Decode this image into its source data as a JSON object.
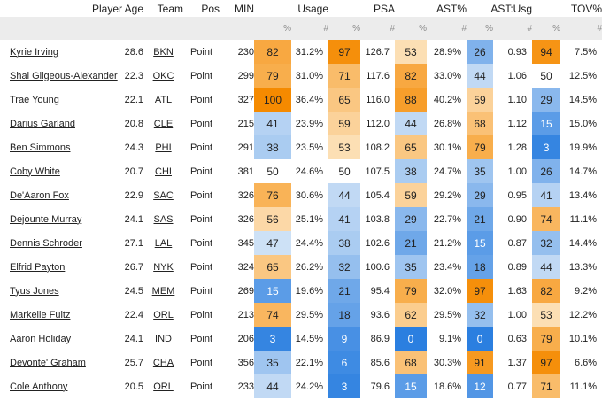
{
  "headers": {
    "player": "Player",
    "age": "Age",
    "team": "Team",
    "pos": "Pos",
    "min": "MIN",
    "usage": "Usage",
    "psa": "PSA",
    "ast": "AST%",
    "astusg": "AST:Usg",
    "tov": "TOV%"
  },
  "sub": {
    "pct": "%",
    "val": "#"
  },
  "colors": {
    "low_strong": "#2b7fe0",
    "low_light": "#dbe9f8",
    "mid": "#ffffff",
    "high_light": "#fde6c4",
    "high_strong": "#f58a00"
  },
  "rows": [
    {
      "player": "Kyrie Irving",
      "age": "28.6",
      "team": "BKN",
      "pos": "Point",
      "min": "230",
      "usage_pct": 82,
      "usage": "31.2%",
      "psa_pct": 97,
      "psa": "126.7",
      "ast_pct": 53,
      "ast": "28.9%",
      "au_pct": 26,
      "au": "0.93",
      "tov_pct": 94,
      "tov": "7.5%"
    },
    {
      "player": "Shai Gilgeous-Alexander",
      "age": "22.3",
      "team": "OKC",
      "pos": "Point",
      "min": "299",
      "usage_pct": 79,
      "usage": "31.0%",
      "psa_pct": 71,
      "psa": "117.6",
      "ast_pct": 82,
      "ast": "33.0%",
      "au_pct": 44,
      "au": "1.06",
      "tov_pct": 50,
      "tov": "12.5%"
    },
    {
      "player": "Trae Young",
      "age": "22.1",
      "team": "ATL",
      "pos": "Point",
      "min": "327",
      "usage_pct": 100,
      "usage": "36.4%",
      "psa_pct": 65,
      "psa": "116.0",
      "ast_pct": 88,
      "ast": "40.2%",
      "au_pct": 59,
      "au": "1.10",
      "tov_pct": 29,
      "tov": "14.5%"
    },
    {
      "player": "Darius Garland",
      "age": "20.8",
      "team": "CLE",
      "pos": "Point",
      "min": "215",
      "usage_pct": 41,
      "usage": "23.9%",
      "psa_pct": 59,
      "psa": "112.0",
      "ast_pct": 44,
      "ast": "26.8%",
      "au_pct": 68,
      "au": "1.12",
      "tov_pct": 15,
      "tov": "15.0%"
    },
    {
      "player": "Ben Simmons",
      "age": "24.3",
      "team": "PHI",
      "pos": "Point",
      "min": "291",
      "usage_pct": 38,
      "usage": "23.5%",
      "psa_pct": 53,
      "psa": "108.2",
      "ast_pct": 65,
      "ast": "30.1%",
      "au_pct": 79,
      "au": "1.28",
      "tov_pct": 3,
      "tov": "19.9%"
    },
    {
      "player": "Coby White",
      "age": "20.7",
      "team": "CHI",
      "pos": "Point",
      "min": "381",
      "usage_pct": 50,
      "usage": "24.6%",
      "psa_pct": 50,
      "psa": "107.5",
      "ast_pct": 38,
      "ast": "24.7%",
      "au_pct": 35,
      "au": "1.00",
      "tov_pct": 26,
      "tov": "14.7%"
    },
    {
      "player": "De'Aaron Fox",
      "age": "22.9",
      "team": "SAC",
      "pos": "Point",
      "min": "326",
      "usage_pct": 76,
      "usage": "30.6%",
      "psa_pct": 44,
      "psa": "105.4",
      "ast_pct": 59,
      "ast": "29.2%",
      "au_pct": 29,
      "au": "0.95",
      "tov_pct": 41,
      "tov": "13.4%"
    },
    {
      "player": "Dejounte Murray",
      "age": "24.1",
      "team": "SAS",
      "pos": "Point",
      "min": "326",
      "usage_pct": 56,
      "usage": "25.1%",
      "psa_pct": 41,
      "psa": "103.8",
      "ast_pct": 29,
      "ast": "22.7%",
      "au_pct": 21,
      "au": "0.90",
      "tov_pct": 74,
      "tov": "11.1%"
    },
    {
      "player": "Dennis Schroder",
      "age": "27.1",
      "team": "LAL",
      "pos": "Point",
      "min": "345",
      "usage_pct": 47,
      "usage": "24.4%",
      "psa_pct": 38,
      "psa": "102.6",
      "ast_pct": 21,
      "ast": "21.2%",
      "au_pct": 15,
      "au": "0.87",
      "tov_pct": 32,
      "tov": "14.4%"
    },
    {
      "player": "Elfrid Payton",
      "age": "26.7",
      "team": "NYK",
      "pos": "Point",
      "min": "324",
      "usage_pct": 65,
      "usage": "26.2%",
      "psa_pct": 32,
      "psa": "100.6",
      "ast_pct": 35,
      "ast": "23.4%",
      "au_pct": 18,
      "au": "0.89",
      "tov_pct": 44,
      "tov": "13.3%"
    },
    {
      "player": "Tyus Jones",
      "age": "24.5",
      "team": "MEM",
      "pos": "Point",
      "min": "269",
      "usage_pct": 15,
      "usage": "19.6%",
      "psa_pct": 21,
      "psa": "95.4",
      "ast_pct": 79,
      "ast": "32.0%",
      "au_pct": 97,
      "au": "1.63",
      "tov_pct": 82,
      "tov": "9.2%"
    },
    {
      "player": "Markelle Fultz",
      "age": "22.4",
      "team": "ORL",
      "pos": "Point",
      "min": "213",
      "usage_pct": 74,
      "usage": "29.5%",
      "psa_pct": 18,
      "psa": "93.6",
      "ast_pct": 62,
      "ast": "29.5%",
      "au_pct": 32,
      "au": "1.00",
      "tov_pct": 53,
      "tov": "12.2%"
    },
    {
      "player": "Aaron Holiday",
      "age": "24.1",
      "team": "IND",
      "pos": "Point",
      "min": "206",
      "usage_pct": 3,
      "usage": "14.5%",
      "psa_pct": 9,
      "psa": "86.9",
      "ast_pct": 0,
      "ast": "9.1%",
      "au_pct": 0,
      "au": "0.63",
      "tov_pct": 79,
      "tov": "10.1%"
    },
    {
      "player": "Devonte' Graham",
      "age": "25.7",
      "team": "CHA",
      "pos": "Point",
      "min": "356",
      "usage_pct": 35,
      "usage": "22.1%",
      "psa_pct": 6,
      "psa": "85.6",
      "ast_pct": 68,
      "ast": "30.3%",
      "au_pct": 91,
      "au": "1.37",
      "tov_pct": 97,
      "tov": "6.6%"
    },
    {
      "player": "Cole Anthony",
      "age": "20.5",
      "team": "ORL",
      "pos": "Point",
      "min": "233",
      "usage_pct": 44,
      "usage": "24.2%",
      "psa_pct": 3,
      "psa": "79.6",
      "ast_pct": 15,
      "ast": "18.6%",
      "au_pct": 12,
      "au": "0.77",
      "tov_pct": 71,
      "tov": "11.1%"
    }
  ]
}
